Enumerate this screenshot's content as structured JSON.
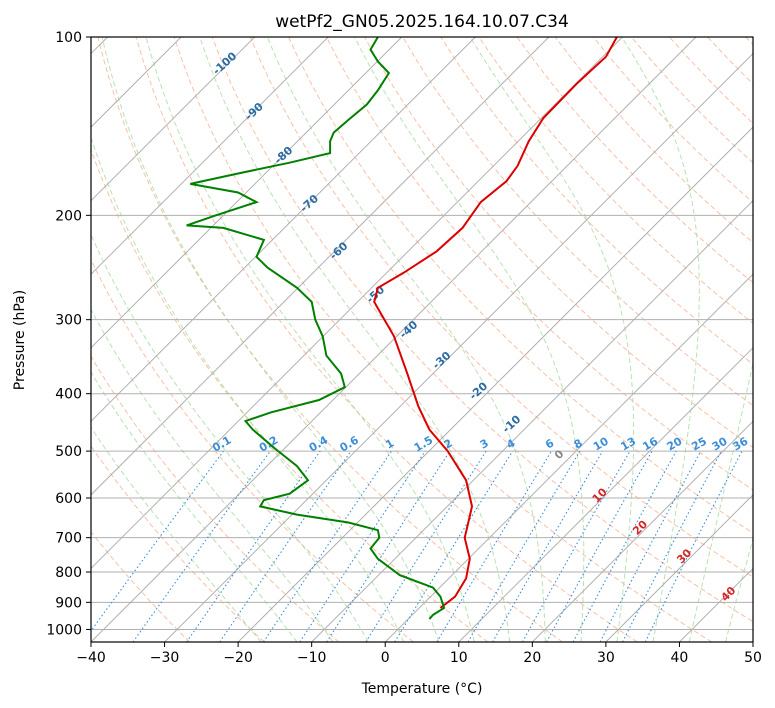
{
  "chart_data": {
    "type": "line",
    "title": "wetPf2_GN05.2025.164.10.07.C34",
    "xlabel": "Temperature (°C)",
    "ylabel": "Pressure (hPa)",
    "xlim": [
      -40,
      50
    ],
    "ylim": [
      1050,
      100
    ],
    "y_scale": "log",
    "x_ticks": [
      "−40",
      "−30",
      "−20",
      "−10",
      "0",
      "10",
      "20",
      "30",
      "40",
      "50"
    ],
    "x_tick_values": [
      -40,
      -30,
      -20,
      -10,
      0,
      10,
      20,
      30,
      40,
      50
    ],
    "y_ticks": [
      "100",
      "200",
      "300",
      "400",
      "500",
      "600",
      "700",
      "800",
      "900",
      "1000"
    ],
    "y_tick_values": [
      100,
      200,
      300,
      400,
      500,
      600,
      700,
      800,
      900,
      1000
    ],
    "grid": true,
    "series": [
      {
        "color": "#dd0000",
        "points": [
          [
            7.5,
            920
          ],
          [
            9.5,
            880
          ],
          [
            11.0,
            820
          ],
          [
            11.5,
            760
          ],
          [
            10.8,
            700
          ],
          [
            11.3,
            660
          ],
          [
            11.8,
            620
          ],
          [
            11.0,
            560
          ],
          [
            8.5,
            500
          ],
          [
            6.0,
            460
          ],
          [
            4.5,
            420
          ],
          [
            3.0,
            370
          ],
          [
            1.2,
            320
          ],
          [
            -1.5,
            280
          ],
          [
            -1.0,
            265
          ],
          [
            2.5,
            250
          ],
          [
            7.0,
            230
          ],
          [
            10.5,
            210
          ],
          [
            13.0,
            190
          ],
          [
            16.5,
            175
          ],
          [
            18.0,
            165
          ],
          [
            19.5,
            150
          ],
          [
            21.5,
            137
          ],
          [
            26.0,
            120
          ],
          [
            30.0,
            108
          ],
          [
            31.5,
            100
          ]
        ]
      },
      {
        "color": "#008000",
        "points": [
          [
            6.0,
            960
          ],
          [
            6.5,
            945
          ],
          [
            8.0,
            920
          ],
          [
            7.5,
            880
          ],
          [
            6.5,
            850
          ],
          [
            2.0,
            810
          ],
          [
            -1.0,
            760
          ],
          [
            -2.0,
            730
          ],
          [
            -0.8,
            700
          ],
          [
            -1.0,
            680
          ],
          [
            -5.0,
            660
          ],
          [
            -12.0,
            640
          ],
          [
            -17.0,
            620
          ],
          [
            -16.5,
            605
          ],
          [
            -13.0,
            590
          ],
          [
            -10.5,
            560
          ],
          [
            -12.0,
            530
          ],
          [
            -15.0,
            495
          ],
          [
            -18.0,
            460
          ],
          [
            -19.0,
            445
          ],
          [
            -15.5,
            430
          ],
          [
            -9.0,
            410
          ],
          [
            -5.5,
            390
          ],
          [
            -6.0,
            370
          ],
          [
            -8.0,
            345
          ],
          [
            -8.5,
            320
          ],
          [
            -9.5,
            300
          ],
          [
            -10.0,
            280
          ],
          [
            -12.0,
            265
          ],
          [
            -16.0,
            245
          ],
          [
            -17.5,
            235
          ],
          [
            -16.5,
            220
          ],
          [
            -22.0,
            210
          ],
          [
            -27.0,
            208
          ],
          [
            -23.0,
            200
          ],
          [
            -17.5,
            190
          ],
          [
            -20.0,
            183
          ],
          [
            -26.5,
            177
          ],
          [
            -20.0,
            170
          ],
          [
            -13.0,
            163
          ],
          [
            -7.5,
            157
          ],
          [
            -7.5,
            150
          ],
          [
            -7.0,
            145
          ],
          [
            -5.0,
            138
          ],
          [
            -2.5,
            130
          ],
          [
            -1.0,
            123
          ],
          [
            0.5,
            115
          ],
          [
            -1.0,
            110
          ],
          [
            -2.0,
            105
          ],
          [
            -1.0,
            100
          ]
        ]
      }
    ],
    "dry_adiabat_labels": [
      "-100",
      "-90",
      "-80",
      "-70",
      "-60",
      "-50",
      "-40",
      "-30",
      "-20",
      "-10"
    ],
    "mixing_ratio_labels": [
      "0.1",
      "0.2",
      "0.4",
      "0.6",
      "1",
      "1.5",
      "2",
      "3",
      "4",
      "6",
      "8",
      "10",
      "13",
      "16",
      "20",
      "25",
      "30",
      "36"
    ],
    "moist_adiabat_labels": [
      "0",
      "10",
      "20",
      "30",
      "40"
    ]
  }
}
